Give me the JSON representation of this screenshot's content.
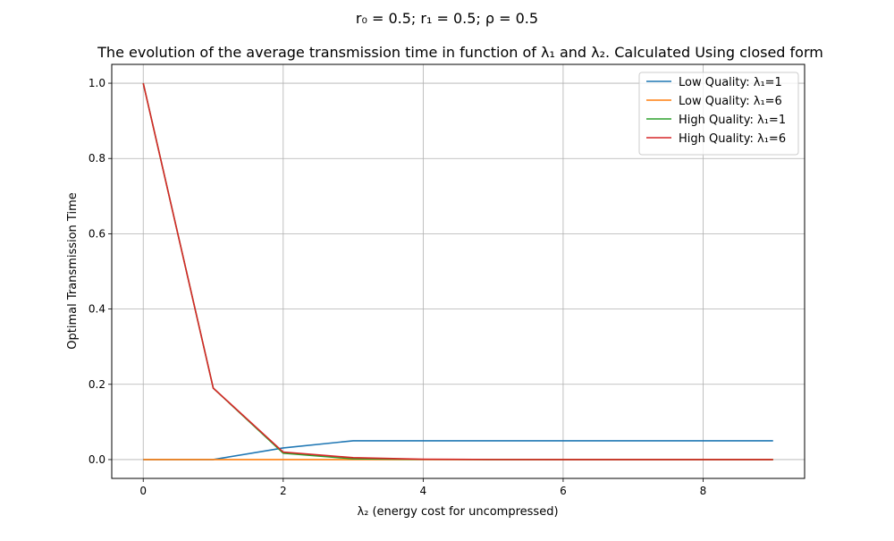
{
  "chart_data": {
    "type": "line",
    "suptitle": "r₀ = 0.5; r₁ = 0.5; ρ = 0.5",
    "title": "The evolution of the average transmission time in function of λ₁ and λ₂. Calculated Using closed form",
    "xlabel": "λ₂ (energy cost for uncompressed)",
    "ylabel": "Optimal Transmission Time",
    "xlim": [
      -0.45,
      9.45
    ],
    "ylim": [
      -0.05,
      1.05
    ],
    "xticks": [
      0,
      2,
      4,
      6,
      8
    ],
    "yticks": [
      0.0,
      0.2,
      0.4,
      0.6,
      0.8,
      1.0
    ],
    "xtick_labels": [
      "0",
      "2",
      "4",
      "6",
      "8"
    ],
    "ytick_labels": [
      "0.0",
      "0.2",
      "0.4",
      "0.6",
      "0.8",
      "1.0"
    ],
    "grid": true,
    "legend_position": "top-right",
    "x": [
      0,
      1,
      2,
      3,
      4,
      5,
      6,
      7,
      8,
      9
    ],
    "series": [
      {
        "name": "Low Quality: λ₁=1",
        "color": "#1f77b4",
        "values": [
          0.0,
          0.0,
          0.031,
          0.05,
          0.05,
          0.05,
          0.05,
          0.05,
          0.05,
          0.05
        ]
      },
      {
        "name": "Low Quality: λ₁=6",
        "color": "#ff7f0e",
        "values": [
          0.0,
          0.0,
          0.0,
          0.0,
          0.0,
          0.0,
          0.0,
          0.0,
          0.0,
          0.0
        ]
      },
      {
        "name": "High Quality: λ₁=1",
        "color": "#2ca02c",
        "values": [
          1.0,
          0.19,
          0.017,
          0.002,
          0.0005,
          0.0,
          0.0,
          0.0,
          0.0,
          0.0
        ]
      },
      {
        "name": "High Quality: λ₁=6",
        "color": "#d62728",
        "values": [
          1.0,
          0.19,
          0.02,
          0.005,
          0.001,
          0.0002,
          0.0,
          0.0,
          0.0,
          0.0
        ]
      }
    ]
  }
}
